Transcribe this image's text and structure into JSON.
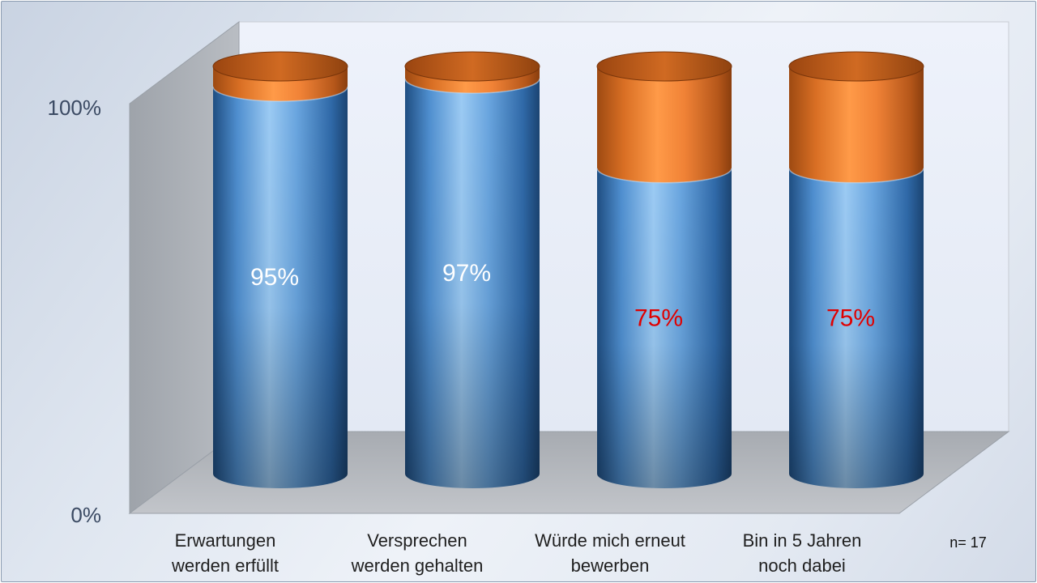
{
  "chart_data": {
    "type": "bar",
    "style": "3d-cylinder-stacked-100",
    "categories": [
      [
        "Erwartungen",
        "werden erfüllt"
      ],
      [
        "Versprechen",
        "werden gehalten"
      ],
      [
        "Würde mich erneut",
        "bewerben"
      ],
      [
        "Bin in 5 Jahren",
        "noch dabei"
      ]
    ],
    "series": [
      {
        "color": "#5b9bd5",
        "values": [
          95,
          97,
          75,
          75
        ]
      },
      {
        "color": "#ed7d31",
        "values": [
          5,
          3,
          25,
          25
        ]
      }
    ],
    "data_labels": [
      "95%",
      "97%",
      "75%",
      "75%"
    ],
    "data_label_colors": [
      "#ffffff",
      "#ffffff",
      "#e00000",
      "#e00000"
    ],
    "ytick_labels": [
      "0%",
      "100%"
    ],
    "ylim": [
      0,
      100
    ],
    "grid": false,
    "legend": "none",
    "note": "n= 17"
  }
}
